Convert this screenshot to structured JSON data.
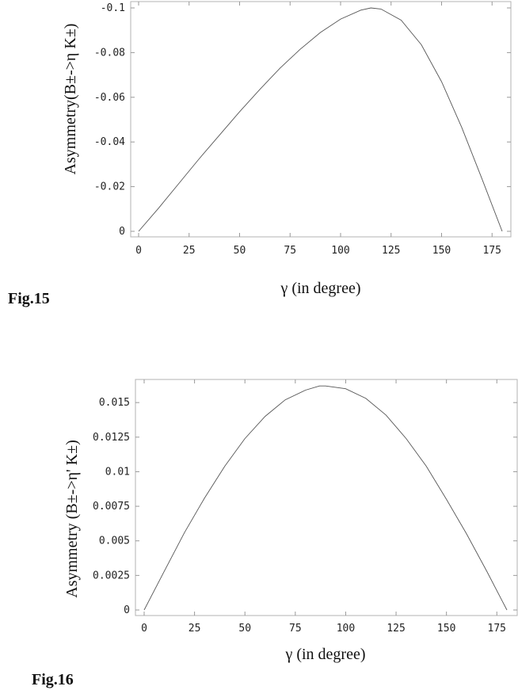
{
  "chart_data": [
    {
      "type": "line",
      "figure_label": "Fig.15",
      "xlabel": "γ (in degree)",
      "ylabel": "Asymmetry(B±->η K±)",
      "xlim": [
        0,
        180
      ],
      "ylim": [
        -0.1,
        0
      ],
      "xticks": [
        "0",
        "25",
        "50",
        "75",
        "100",
        "125",
        "150",
        "175"
      ],
      "yticks": [
        "0",
        "-0.02",
        "-0.04",
        "-0.06",
        "-0.08",
        "-0.1"
      ],
      "series": [
        {
          "x": [
            0,
            10,
            20,
            30,
            40,
            50,
            60,
            70,
            80,
            90,
            100,
            110,
            115,
            120,
            130,
            140,
            150,
            160,
            170,
            180
          ],
          "y": [
            0,
            -0.0105,
            -0.0215,
            -0.0325,
            -0.043,
            -0.0535,
            -0.0635,
            -0.073,
            -0.0815,
            -0.089,
            -0.095,
            -0.099,
            -0.1,
            -0.0995,
            -0.0945,
            -0.0835,
            -0.067,
            -0.0465,
            -0.0235,
            0
          ]
        }
      ]
    },
    {
      "type": "line",
      "figure_label": "Fig.16",
      "xlabel": "γ (in degree)",
      "ylabel": "Asymmetry (B±->η' K±)",
      "xlim": [
        0,
        180
      ],
      "ylim": [
        0,
        0.0165
      ],
      "xticks": [
        "0",
        "25",
        "50",
        "75",
        "100",
        "125",
        "150",
        "175"
      ],
      "yticks": [
        "0",
        "0.0025",
        "0.005",
        "0.0075",
        "0.01",
        "0.0125",
        "0.015"
      ],
      "series": [
        {
          "x": [
            0,
            10,
            20,
            30,
            40,
            50,
            60,
            70,
            80,
            87,
            90,
            100,
            110,
            120,
            130,
            140,
            150,
            160,
            170,
            180
          ],
          "y": [
            0,
            0.0028,
            0.0056,
            0.0081,
            0.0104,
            0.0124,
            0.014,
            0.0152,
            0.0159,
            0.0162,
            0.0162,
            0.016,
            0.0153,
            0.0141,
            0.0124,
            0.0104,
            0.008,
            0.0055,
            0.0028,
            0
          ]
        }
      ]
    }
  ]
}
